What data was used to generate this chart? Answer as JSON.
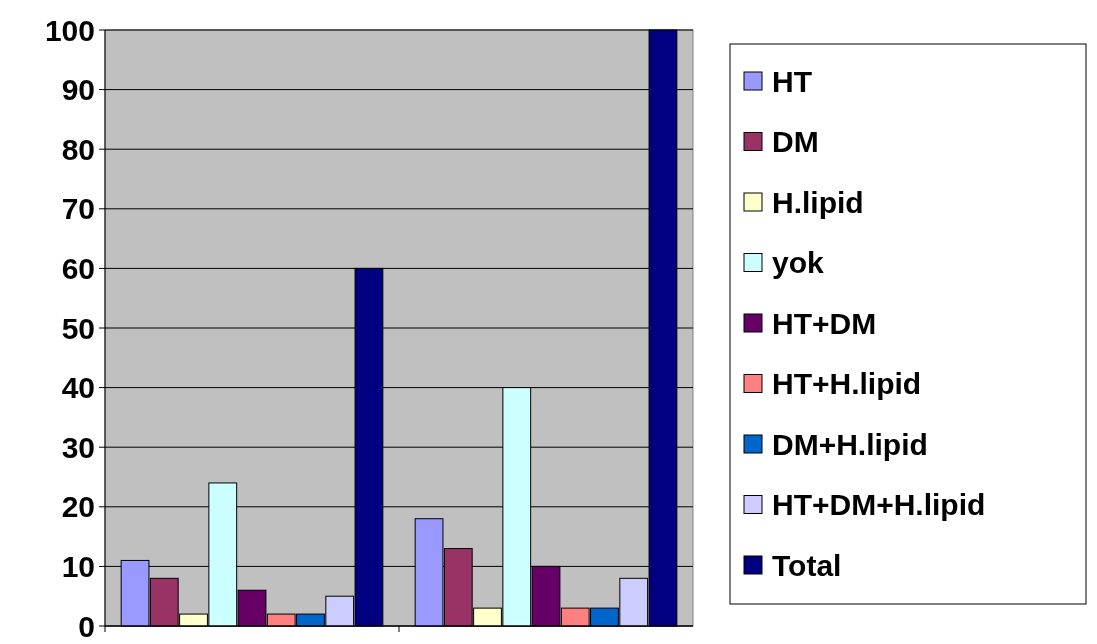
{
  "chart_data": {
    "type": "bar",
    "categories": [
      null,
      null
    ],
    "series": [
      {
        "name": "HT",
        "color": "#9999ff",
        "values": [
          11,
          18
        ]
      },
      {
        "name": "DM",
        "color": "#993366",
        "values": [
          8,
          13
        ]
      },
      {
        "name": "H.lipid",
        "color": "#ffffcc",
        "values": [
          2,
          3
        ]
      },
      {
        "name": "yok",
        "color": "#ccffff",
        "values": [
          24,
          40
        ]
      },
      {
        "name": "HT+DM",
        "color": "#660066",
        "values": [
          6,
          10
        ]
      },
      {
        "name": "HT+H.lipid",
        "color": "#ff8080",
        "values": [
          2,
          3
        ]
      },
      {
        "name": "DM+H.lipid",
        "color": "#0066cc",
        "values": [
          2,
          3
        ]
      },
      {
        "name": "HT+DM+H.lipid",
        "color": "#ccccff",
        "values": [
          5,
          8
        ]
      },
      {
        "name": "Total",
        "color": "#000080",
        "values": [
          60,
          100
        ]
      }
    ],
    "ylim": [
      0,
      100
    ],
    "yticks": [
      0,
      10,
      20,
      30,
      40,
      50,
      60,
      70,
      80,
      90,
      100
    ],
    "grid": "y",
    "legend": "right"
  }
}
